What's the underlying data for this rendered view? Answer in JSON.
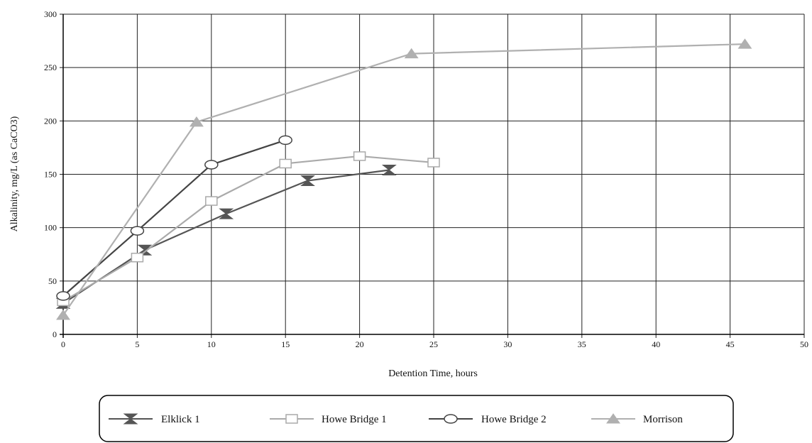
{
  "chart_data": {
    "type": "line",
    "title": "",
    "xlabel": "Detention Time, hours",
    "ylabel": "Alkalinity, mg/L (as CaCO3)",
    "xlim": [
      0,
      50
    ],
    "ylim": [
      0,
      300
    ],
    "xticks": [
      0,
      5,
      10,
      15,
      20,
      25,
      30,
      35,
      40,
      45,
      50
    ],
    "yticks": [
      0,
      50,
      100,
      150,
      200,
      250,
      300
    ],
    "grid": true,
    "legend_position": "bottom",
    "series": [
      {
        "name": "Elklick 1",
        "marker": "hourglass",
        "color": "#555555",
        "points": [
          [
            0,
            29
          ],
          [
            5.5,
            79
          ],
          [
            11,
            113
          ],
          [
            16.5,
            144
          ],
          [
            22,
            154
          ]
        ]
      },
      {
        "name": "Howe Bridge 1",
        "marker": "square",
        "color": "#aaaaaa",
        "points": [
          [
            0,
            31
          ],
          [
            5,
            72
          ],
          [
            10,
            125
          ],
          [
            15,
            160
          ],
          [
            20,
            167
          ],
          [
            25,
            161
          ]
        ]
      },
      {
        "name": "Howe Bridge 2",
        "marker": "circle",
        "color": "#444444",
        "points": [
          [
            0,
            36
          ],
          [
            5,
            97
          ],
          [
            10,
            159
          ],
          [
            15,
            182
          ]
        ]
      },
      {
        "name": "Morrison",
        "marker": "triangle",
        "color": "#b0b0b0",
        "points": [
          [
            0,
            18
          ],
          [
            9,
            199
          ],
          [
            23.5,
            263
          ],
          [
            46,
            272
          ]
        ]
      }
    ]
  }
}
